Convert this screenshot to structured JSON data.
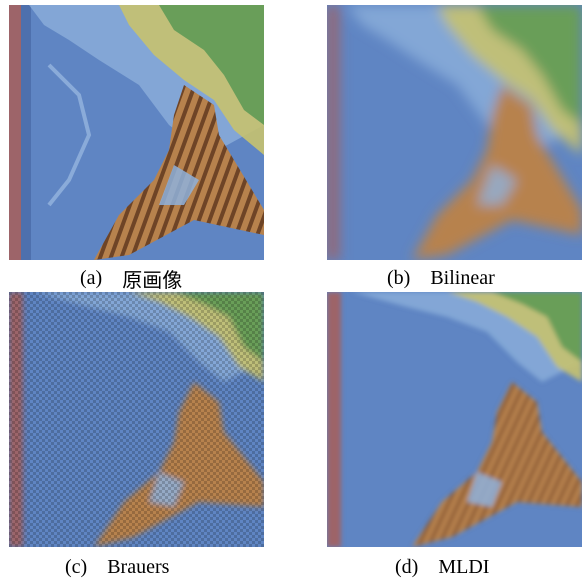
{
  "panels": [
    {
      "id": "a",
      "letter": "(a)",
      "label": "原画像",
      "name": "original-image"
    },
    {
      "id": "b",
      "letter": "(b)",
      "label": "Bilinear",
      "name": "bilinear-image"
    },
    {
      "id": "c",
      "letter": "(c)",
      "label": "Brauers",
      "name": "brauers-image"
    },
    {
      "id": "d",
      "letter": "(d)",
      "label": "MLDI",
      "name": "mldi-image"
    }
  ],
  "colors": {
    "ocean": "#5f85c3",
    "ocean_light": "#8fb2dc",
    "land_green": "#5f9a55",
    "land_yellow": "#c7c26f",
    "peninsula": "#b7824d",
    "edge_red": "#b15a4b"
  }
}
